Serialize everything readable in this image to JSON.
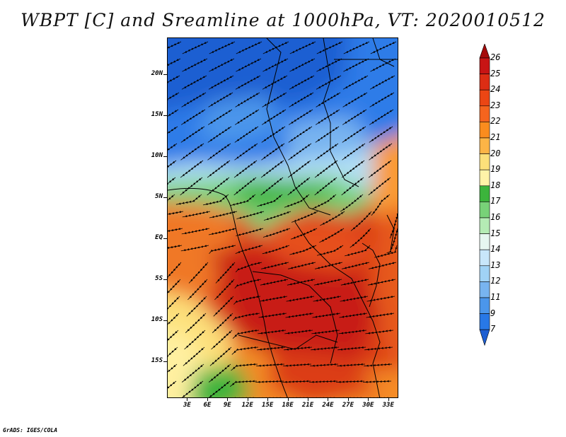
{
  "title": "WBPT [C] and Sreamline at 1000hPa, VT: 2020010512",
  "footer": "GrADS: IGES/COLA",
  "map": {
    "latitude_ticks": [
      "20N",
      "15N",
      "10N",
      "5N",
      "EQ",
      "5S",
      "10S",
      "15S"
    ],
    "longitude_ticks": [
      "3E",
      "6E",
      "9E",
      "12E",
      "15E",
      "18E",
      "21E",
      "24E",
      "27E",
      "30E",
      "33E"
    ],
    "lat_range": [
      -19.5,
      24.5
    ],
    "lon_range": [
      0,
      34.5
    ],
    "field": "WBPT",
    "units": "C",
    "level": "1000hPa"
  },
  "colorbar": {
    "labels": [
      "26",
      "25",
      "24",
      "23",
      "22",
      "21",
      "20",
      "19",
      "18",
      "17",
      "16",
      "15",
      "14",
      "13",
      "12",
      "11",
      "9",
      "7"
    ],
    "colors": [
      "#a50a0a",
      "#c81414",
      "#dc2d14",
      "#eb4614",
      "#f5641e",
      "#fa8c1e",
      "#fdb446",
      "#fde07a",
      "#fff3a8",
      "#3cb43c",
      "#78d278",
      "#b4ebb4",
      "#e6f6f0",
      "#c8e6fa",
      "#a0d2f5",
      "#78b4f0",
      "#4b96eb",
      "#2878e6",
      "#1e5fd2"
    ]
  }
}
